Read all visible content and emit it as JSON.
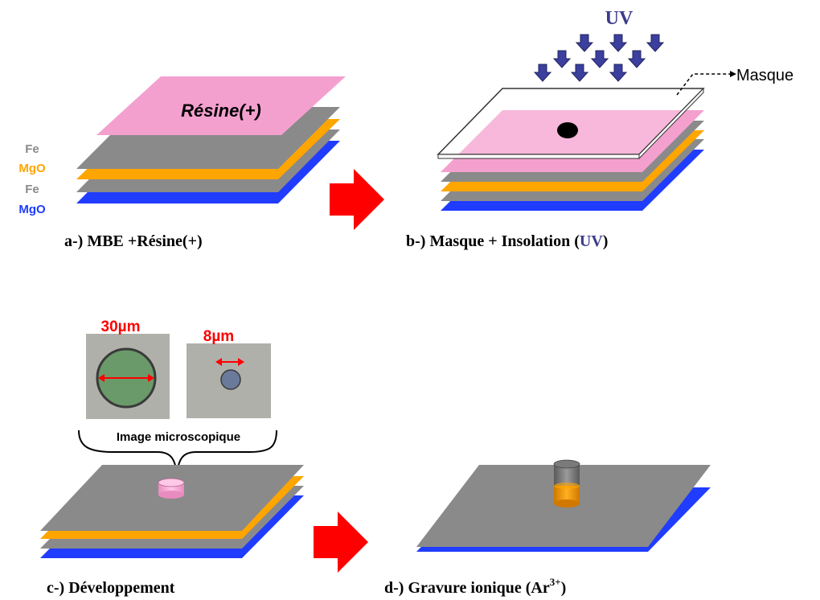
{
  "panel_a": {
    "caption": "a-)  MBE +Résine(+)",
    "resin_label": "Résine(+)",
    "layers": [
      {
        "name": "Fe",
        "color": "#8a8a8a"
      },
      {
        "name": "MgO",
        "color": "#ffa500"
      },
      {
        "name": "Fe",
        "color": "#8a8a8a"
      },
      {
        "name": "MgO",
        "color": "#1f3cff"
      }
    ]
  },
  "panel_b": {
    "caption_main": "b-)  Masque + Insolation (",
    "caption_uv": "UV",
    "caption_end": ")",
    "uv_label": "UV",
    "mask_label": "Masque"
  },
  "panel_c": {
    "caption": "c-)  Développement",
    "size_large": "30µm",
    "size_small": "8µm",
    "microscope_label": "Image microscopique"
  },
  "panel_d": {
    "caption_main": "d-) Gravure ionique (Ar",
    "caption_sup": "3+",
    "caption_end": ")"
  },
  "colors": {
    "fe": "#8a8a8a",
    "mgo_orange": "#ffa500",
    "mgo_blue": "#1f3cff",
    "resin": "#f4a0cf",
    "arrow_red": "#ff0000",
    "uv_arrow": "#3b3f9e",
    "label_red": "#ff0000",
    "uv_text": "#3c3c8c"
  }
}
